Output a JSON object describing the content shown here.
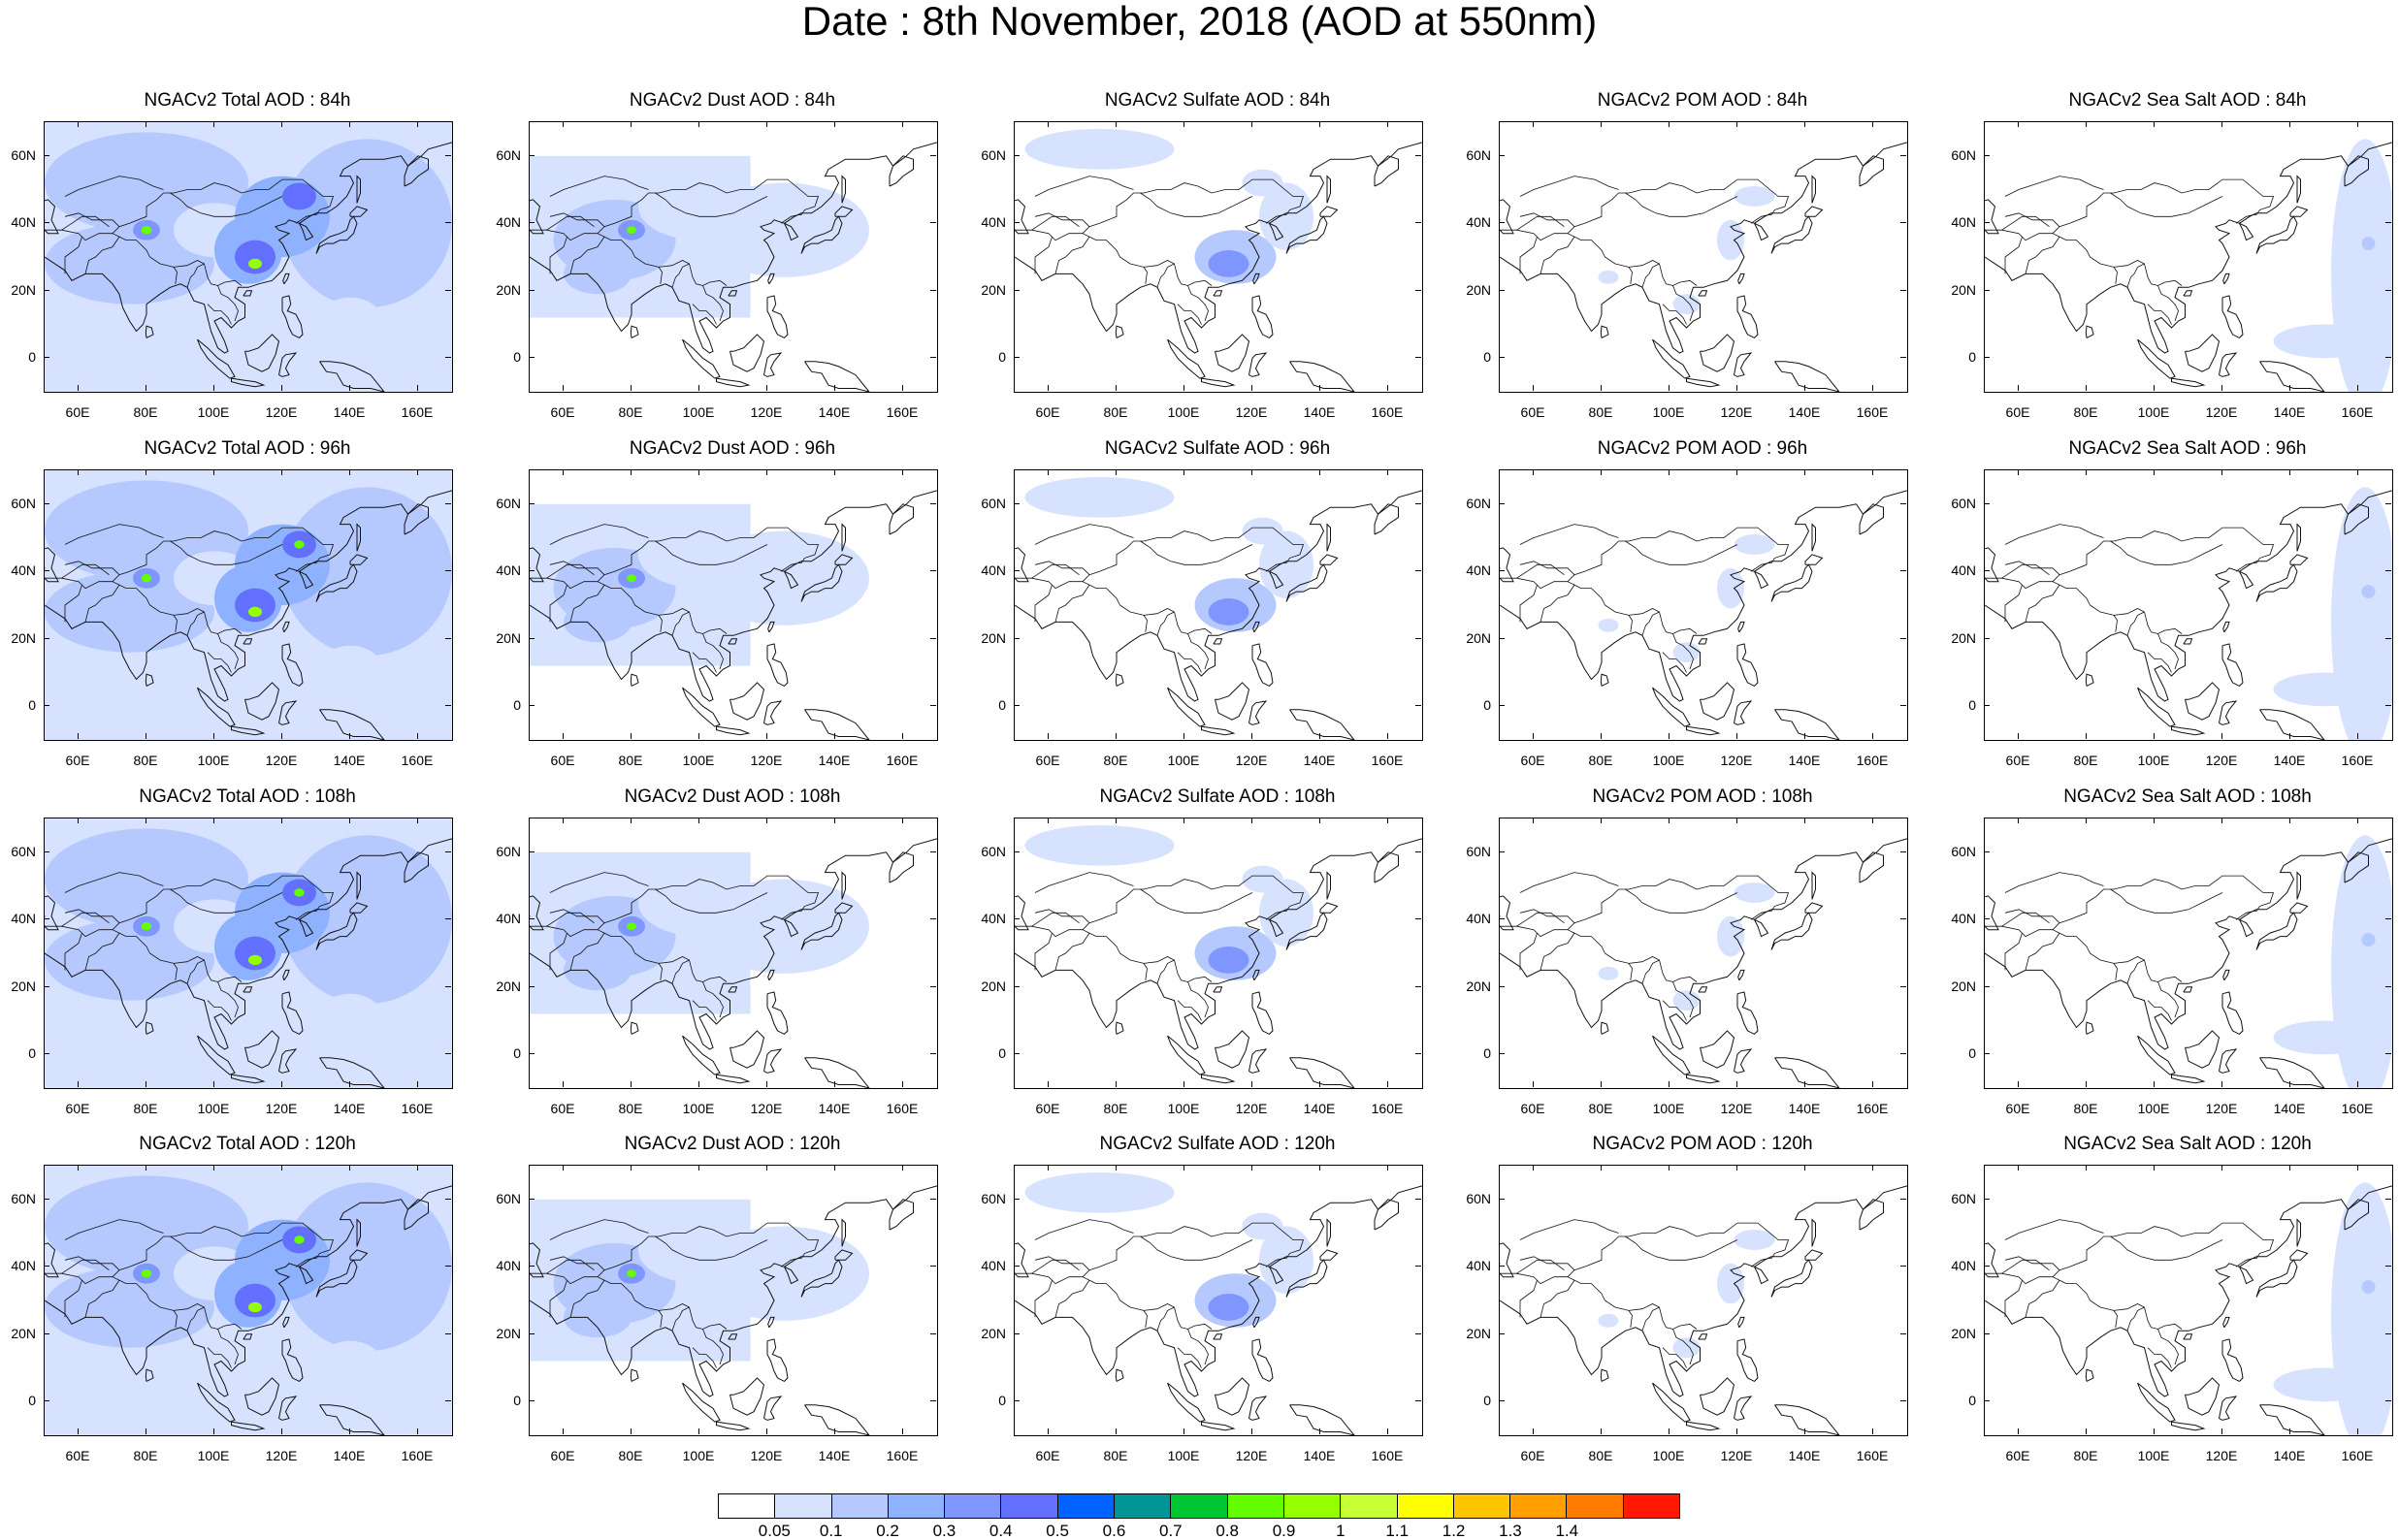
{
  "title": "Date : 8th November, 2018 (AOD at 550nm)",
  "panel_titles": [
    [
      "NGACv2 Total AOD : 84h",
      "NGACv2 Dust AOD : 84h",
      "NGACv2 Sulfate AOD : 84h",
      "NGACv2 POM AOD : 84h",
      "NGACv2 Sea Salt AOD : 84h"
    ],
    [
      "NGACv2 Total AOD : 96h",
      "NGACv2 Dust AOD : 96h",
      "NGACv2 Sulfate AOD : 96h",
      "NGACv2 POM AOD : 96h",
      "NGACv2 Sea Salt AOD : 96h"
    ],
    [
      "NGACv2 Total AOD : 108h",
      "NGACv2 Dust AOD : 108h",
      "NGACv2 Sulfate AOD : 108h",
      "NGACv2 POM AOD : 108h",
      "NGACv2 Sea Salt AOD : 108h"
    ],
    [
      "NGACv2 Total AOD : 120h",
      "NGACv2 Dust AOD : 120h",
      "NGACv2 Sulfate AOD : 120h",
      "NGACv2 POM AOD : 120h",
      "NGACv2 Sea Salt  AOD : 120h"
    ]
  ],
  "lat_ticks": [
    "60N",
    "40N",
    "20N",
    "0"
  ],
  "lat_tick_values": [
    60,
    40,
    20,
    0
  ],
  "lon_ticks": [
    "60E",
    "80E",
    "100E",
    "120E",
    "140E",
    "160E"
  ],
  "lon_tick_values": [
    60,
    80,
    100,
    120,
    140,
    160
  ],
  "map_extent": {
    "lon": [
      50,
      170
    ],
    "lat": [
      -10,
      70
    ]
  },
  "colorbar": {
    "labels": [
      "0.05",
      "0.1",
      "0.2",
      "0.3",
      "0.4",
      "0.5",
      "0.6",
      "0.7",
      "0.8",
      "0.9",
      "1",
      "1.1",
      "1.2",
      "1.3",
      "1.4"
    ],
    "colors": [
      "#ffffff",
      "#d6e2ff",
      "#b5c9ff",
      "#8eb2ff",
      "#7f96ff",
      "#6370ff",
      "#0063ff",
      "#009696",
      "#00c633",
      "#63ff00",
      "#96ff00",
      "#c6ff33",
      "#ffff00",
      "#ffc600",
      "#ffa000",
      "#ff7c00",
      "#ff1900"
    ]
  }
}
